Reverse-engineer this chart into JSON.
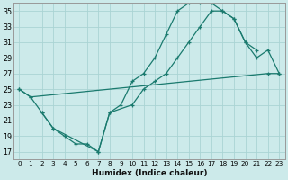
{
  "xlabel": "Humidex (Indice chaleur)",
  "bg_color": "#cceaea",
  "line_color": "#1a7a6e",
  "grid_color": "#aad4d4",
  "yticks": [
    17,
    19,
    21,
    23,
    25,
    27,
    29,
    31,
    33,
    35
  ],
  "xlim": [
    -0.5,
    23.5
  ],
  "ylim": [
    16.0,
    36.0
  ],
  "line1_x": [
    0,
    1,
    2,
    3,
    4,
    5,
    6,
    7,
    8,
    9,
    10,
    11,
    12,
    13,
    14,
    15,
    16,
    17,
    18,
    19,
    20,
    21
  ],
  "line1_y": [
    25,
    24,
    22,
    20,
    19,
    18,
    18,
    17,
    22,
    23,
    26,
    27,
    29,
    32,
    35,
    36,
    36,
    36,
    35,
    34,
    31,
    30
  ],
  "line2_x": [
    0,
    1,
    22,
    23
  ],
  "line2_y": [
    25,
    24,
    27,
    27
  ],
  "line3_x": [
    2,
    3,
    7,
    8,
    10,
    11,
    12,
    13,
    14,
    15,
    16,
    17,
    18,
    19,
    20,
    21,
    22,
    23
  ],
  "line3_y": [
    22,
    20,
    17,
    22,
    23,
    25,
    26,
    27,
    29,
    31,
    33,
    35,
    35,
    34,
    31,
    29,
    30,
    27
  ]
}
